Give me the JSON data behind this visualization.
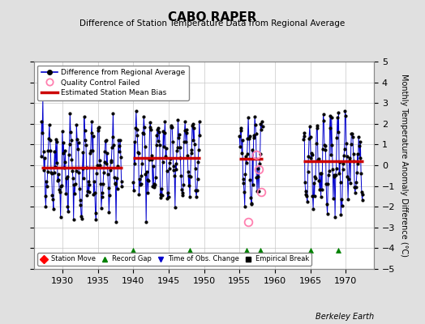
{
  "title": "CABO RAPER",
  "subtitle": "Difference of Station Temperature Data from Regional Average",
  "ylabel": "Monthly Temperature Anomaly Difference (°C)",
  "berkeley_label": "Berkeley Earth",
  "ylim": [
    -5,
    5
  ],
  "xlim": [
    1926,
    1974
  ],
  "background_color": "#e0e0e0",
  "plot_bg_color": "#ffffff",
  "grid_color": "#c8c8c8",
  "line_color": "#0000cc",
  "dot_color": "#000000",
  "bias_color": "#cc0000",
  "qc_color": "#ff80b0",
  "gap_color": "#008000",
  "segments": [
    {
      "x_start": 1927.0,
      "x_end": 1938.5,
      "bias": -0.1
    },
    {
      "x_start": 1940.0,
      "x_end": 1949.5,
      "bias": 0.35
    },
    {
      "x_start": 1955.0,
      "x_end": 1958.3,
      "bias": 0.3
    },
    {
      "x_start": 1964.0,
      "x_end": 1972.5,
      "bias": 0.2
    }
  ],
  "record_gaps": [
    1940,
    1948,
    1956,
    1958,
    1965,
    1969
  ],
  "qc_pts": [
    [
      1957.4,
      0.5
    ],
    [
      1957.75,
      -0.2
    ],
    [
      1958.08,
      -1.3
    ],
    [
      1956.25,
      -2.75
    ]
  ]
}
